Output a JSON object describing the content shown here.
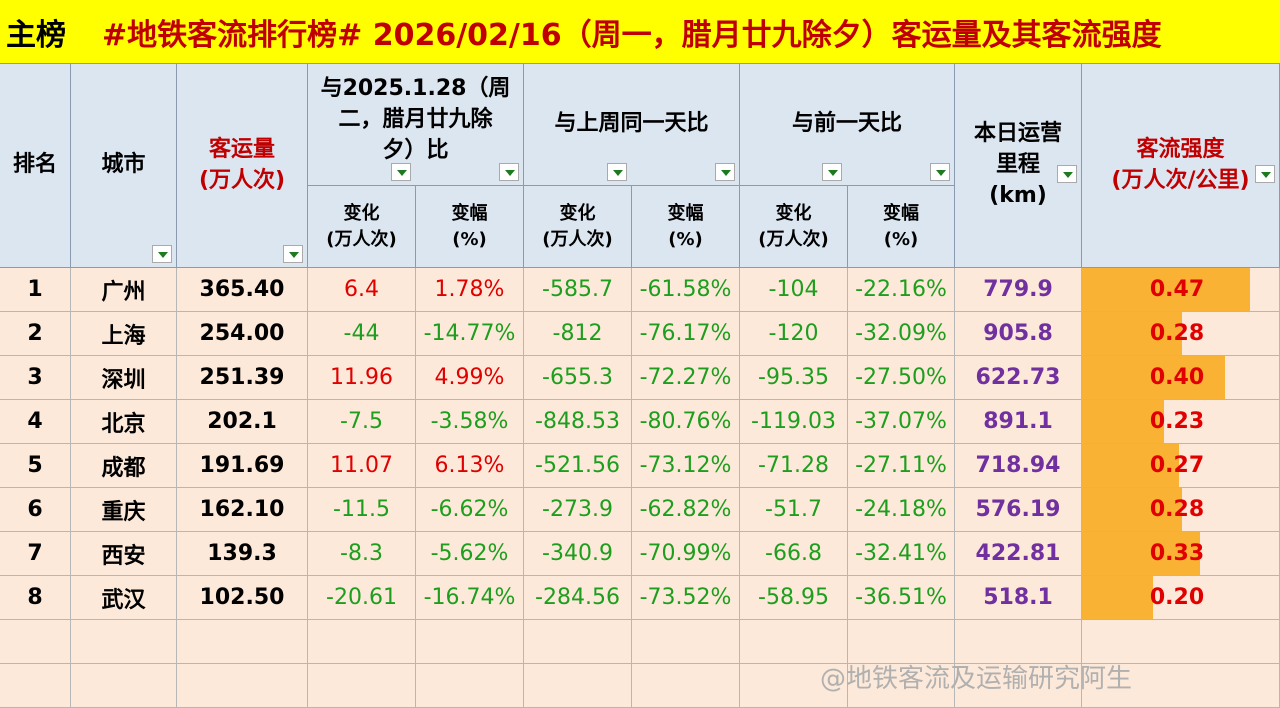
{
  "header": {
    "tag": "主榜",
    "title": "#地铁客流排行榜# 2026/02/16（周一，腊月廿九除夕）客运量及其客流强度"
  },
  "columns": {
    "rank": "排名",
    "city": "城市",
    "volume_l1": "客运量",
    "volume_l2": "(万人次)",
    "cmp_ly_l1": "与2025.1.28（周",
    "cmp_ly_l2": "二，腊月廿九除",
    "cmp_ly_l3": "夕）比",
    "cmp_lw": "与上周同一天比",
    "cmp_pd": "与前一天比",
    "mileage_l1": "本日运营",
    "mileage_l2": "里程",
    "mileage_l3": "(km)",
    "intensity_l1": "客流强度",
    "intensity_l2": "(万人次/公里)",
    "change_l1": "变化",
    "change_l2": "(万人次)",
    "pct_l1": "变幅",
    "pct_l2": "(%)"
  },
  "rows": [
    {
      "rank": "1",
      "city": "广州",
      "volume": "365.40",
      "ly_chg": "6.4",
      "ly_pct": "1.78%",
      "lw_chg": "-585.7",
      "lw_pct": "-61.58%",
      "pd_chg": "-104",
      "pd_pct": "-22.16%",
      "mileage": "779.9",
      "intensity": "0.47"
    },
    {
      "rank": "2",
      "city": "上海",
      "volume": "254.00",
      "ly_chg": "-44",
      "ly_pct": "-14.77%",
      "lw_chg": "-812",
      "lw_pct": "-76.17%",
      "pd_chg": "-120",
      "pd_pct": "-32.09%",
      "mileage": "905.8",
      "intensity": "0.28"
    },
    {
      "rank": "3",
      "city": "深圳",
      "volume": "251.39",
      "ly_chg": "11.96",
      "ly_pct": "4.99%",
      "lw_chg": "-655.3",
      "lw_pct": "-72.27%",
      "pd_chg": "-95.35",
      "pd_pct": "-27.50%",
      "mileage": "622.73",
      "intensity": "0.40"
    },
    {
      "rank": "4",
      "city": "北京",
      "volume": "202.1",
      "ly_chg": "-7.5",
      "ly_pct": "-3.58%",
      "lw_chg": "-848.53",
      "lw_pct": "-80.76%",
      "pd_chg": "-119.03",
      "pd_pct": "-37.07%",
      "mileage": "891.1",
      "intensity": "0.23"
    },
    {
      "rank": "5",
      "city": "成都",
      "volume": "191.69",
      "ly_chg": "11.07",
      "ly_pct": "6.13%",
      "lw_chg": "-521.56",
      "lw_pct": "-73.12%",
      "pd_chg": "-71.28",
      "pd_pct": "-27.11%",
      "mileage": "718.94",
      "intensity": "0.27"
    },
    {
      "rank": "6",
      "city": "重庆",
      "volume": "162.10",
      "ly_chg": "-11.5",
      "ly_pct": "-6.62%",
      "lw_chg": "-273.9",
      "lw_pct": "-62.82%",
      "pd_chg": "-51.7",
      "pd_pct": "-24.18%",
      "mileage": "576.19",
      "intensity": "0.28"
    },
    {
      "rank": "7",
      "city": "西安",
      "volume": "139.3",
      "ly_chg": "-8.3",
      "ly_pct": "-5.62%",
      "lw_chg": "-340.9",
      "lw_pct": "-70.99%",
      "pd_chg": "-66.8",
      "pd_pct": "-32.41%",
      "mileage": "422.81",
      "intensity": "0.33"
    },
    {
      "rank": "8",
      "city": "武汉",
      "volume": "102.50",
      "ly_chg": "-20.61",
      "ly_pct": "-16.74%",
      "lw_chg": "-284.56",
      "lw_pct": "-73.52%",
      "pd_chg": "-58.95",
      "pd_pct": "-36.51%",
      "mileage": "518.1",
      "intensity": "0.20"
    }
  ],
  "watermark": "@地铁客流及运输研究阿生",
  "colors": {
    "positive": "#e00000",
    "negative": "#1e9e1e",
    "mileage": "#7030a0",
    "bar": "#f9b233"
  }
}
